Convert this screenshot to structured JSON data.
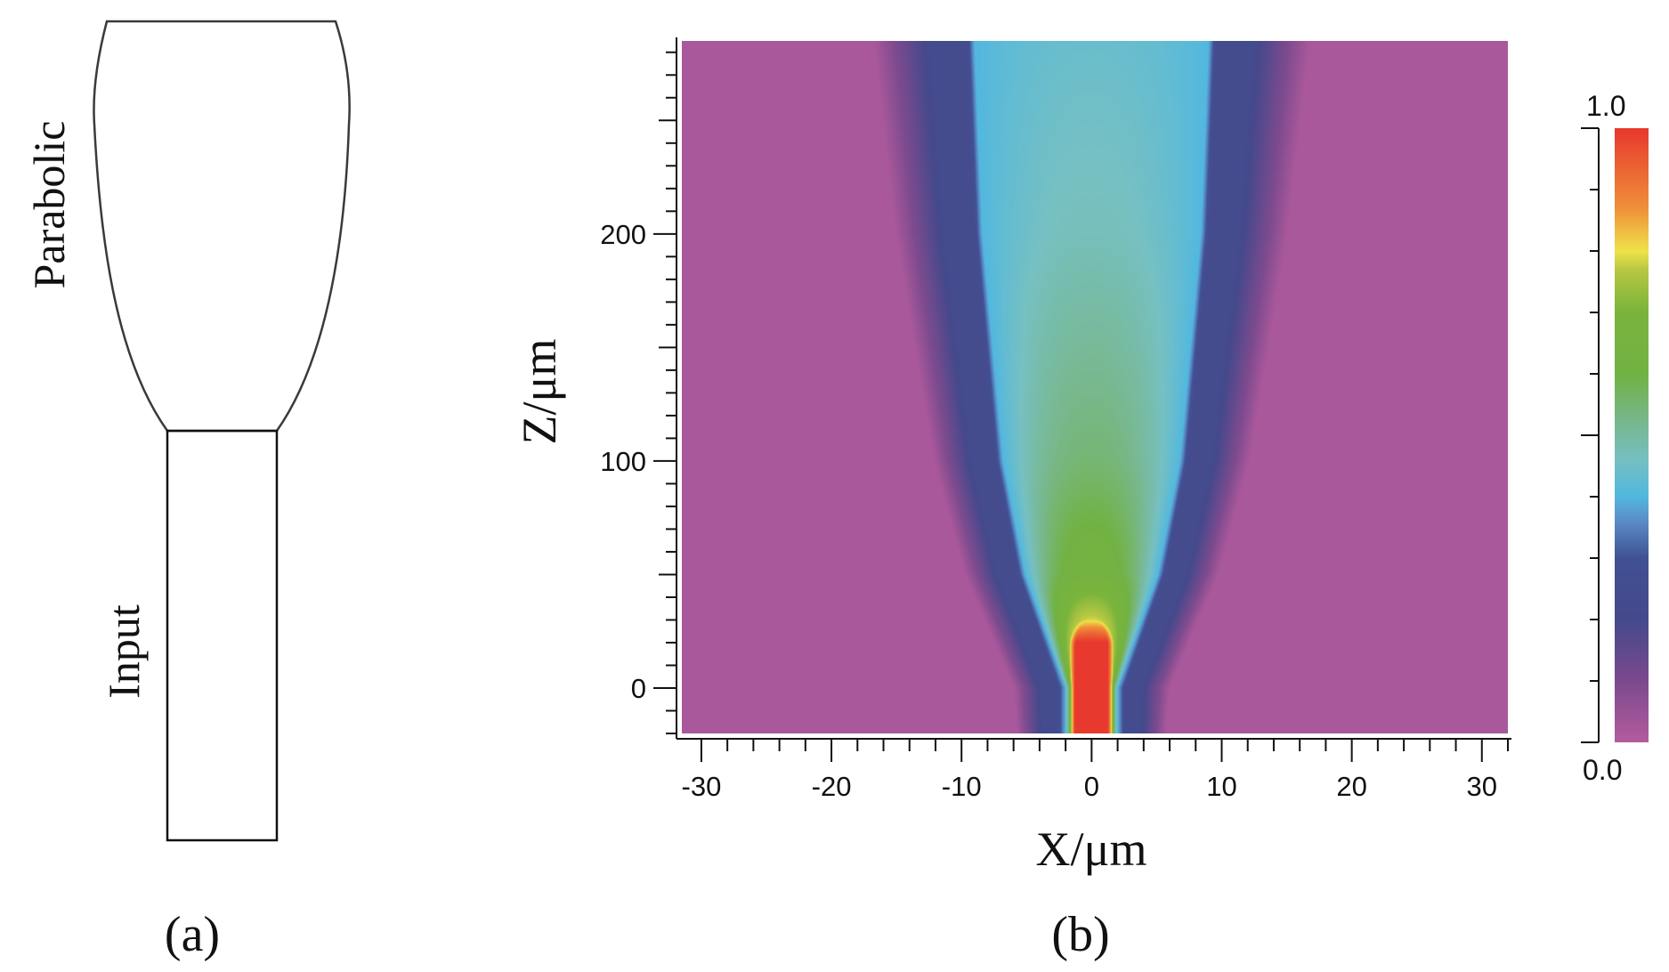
{
  "panel_a": {
    "label": "(a)",
    "sections": [
      {
        "name": "Parabolic",
        "shape": "parabolic taper"
      },
      {
        "name": "Input",
        "shape": "rectangle"
      }
    ],
    "line_color": "#333333"
  },
  "panel_b": {
    "label": "(b)"
  },
  "chart_data": {
    "type": "heatmap",
    "xlabel": "X/μm",
    "ylabel": "Z/μm",
    "xlim": [
      -31.5,
      32
    ],
    "ylim": [
      -20,
      285
    ],
    "x_ticks": [
      -30,
      -20,
      -10,
      0,
      10,
      20,
      30
    ],
    "x_tick_labels": [
      "-30",
      "-20",
      "-10",
      "0",
      "10",
      "20",
      "30"
    ],
    "y_ticks": [
      0,
      100,
      200
    ],
    "y_tick_labels": [
      "0",
      "100",
      "200"
    ],
    "grid": false,
    "colorbar": {
      "min": 0.0,
      "max": 1.0,
      "min_label": "0.0",
      "max_label": "1.0",
      "placement": "right",
      "stops": [
        [
          0.0,
          "#b45c9e"
        ],
        [
          0.1,
          "#7c4a8e"
        ],
        [
          0.2,
          "#45498c"
        ],
        [
          0.3,
          "#405294"
        ],
        [
          0.36,
          "#5b8dc8"
        ],
        [
          0.4,
          "#52b8e0"
        ],
        [
          0.46,
          "#76c0c2"
        ],
        [
          0.52,
          "#78b890"
        ],
        [
          0.6,
          "#72b244"
        ],
        [
          0.7,
          "#7ab43c"
        ],
        [
          0.77,
          "#b8c842"
        ],
        [
          0.8,
          "#efe44a"
        ],
        [
          0.87,
          "#f0903a"
        ],
        [
          1.0,
          "#e8392e"
        ]
      ]
    },
    "background_value": 0.02,
    "beam_profile": {
      "z": [
        0,
        50,
        100,
        200,
        285
      ],
      "half_width_um": [
        2.0,
        5.1,
        6.8,
        8.4,
        9.0
      ],
      "center_intensity": [
        1.0,
        0.64,
        0.55,
        0.47,
        0.44
      ]
    },
    "hot_core": {
      "z_range": [
        -20,
        30
      ],
      "half_width_um": 1.3,
      "intensity": 1.0
    }
  }
}
